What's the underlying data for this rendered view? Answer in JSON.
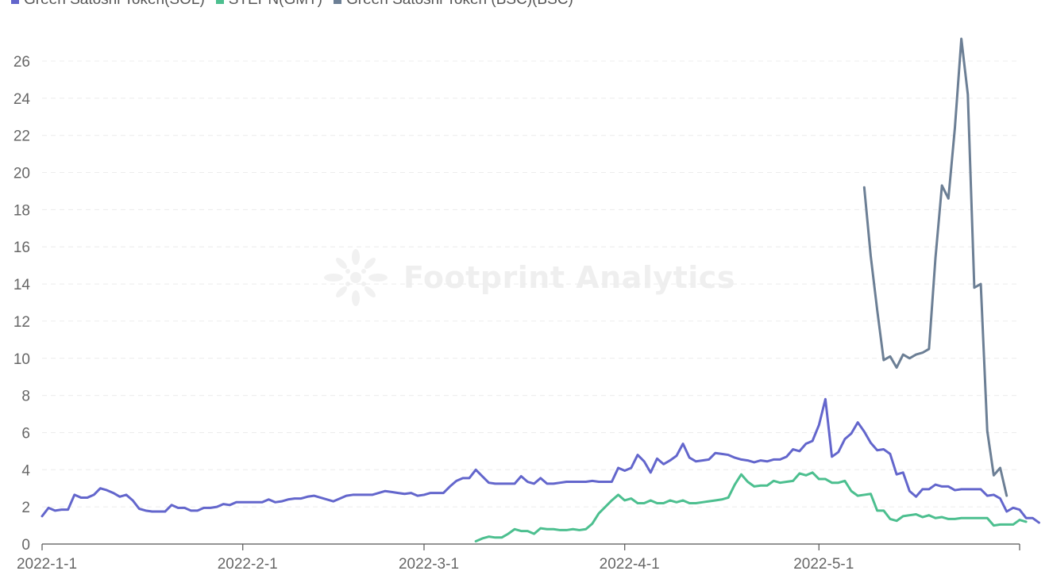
{
  "legend": [
    {
      "label": "Green Satoshi Token(SOL)",
      "color": "#6366cc"
    },
    {
      "label": "STEPN(GMT)",
      "color": "#4cbf8f"
    },
    {
      "label": "Green Satoshi Token (BSC)(BSC)",
      "color": "#6c7f95"
    }
  ],
  "watermark": {
    "text": "Footprint Analytics"
  },
  "chart_data": {
    "type": "line",
    "title": "",
    "xlabel": "",
    "ylabel": "",
    "x_start": "2022-01-01",
    "x_end": "2022-06-01",
    "x_ticks": [
      {
        "label": "2022-1-1",
        "day": 0
      },
      {
        "label": "2022-2-1",
        "day": 31
      },
      {
        "label": "2022-3-1",
        "day": 59
      },
      {
        "label": "2022-4-1",
        "day": 90
      },
      {
        "label": "2022-5-1",
        "day": 120
      }
    ],
    "ylim": [
      0,
      27
    ],
    "y_ticks": [
      0,
      2,
      4,
      6,
      8,
      10,
      12,
      14,
      16,
      18,
      20,
      22,
      24,
      26
    ],
    "grid": true,
    "series": [
      {
        "name": "Green Satoshi Token(SOL)",
        "color": "#6366cc",
        "start_date": "2022-01-01",
        "values": [
          1.5,
          1.95,
          1.8,
          1.85,
          1.85,
          2.65,
          2.5,
          2.5,
          2.65,
          3.0,
          2.9,
          2.75,
          2.55,
          2.65,
          2.35,
          1.9,
          1.8,
          1.75,
          1.75,
          1.75,
          2.1,
          1.95,
          1.95,
          1.8,
          1.8,
          1.95,
          1.95,
          2.0,
          2.15,
          2.1,
          2.25,
          2.25,
          2.25,
          2.25,
          2.25,
          2.4,
          2.25,
          2.3,
          2.4,
          2.45,
          2.45,
          2.55,
          2.6,
          2.5,
          2.4,
          2.3,
          2.45,
          2.6,
          2.65,
          2.65,
          2.65,
          2.65,
          2.75,
          2.85,
          2.8,
          2.75,
          2.7,
          2.75,
          2.6,
          2.65,
          2.75,
          2.75,
          2.75,
          3.1,
          3.4,
          3.55,
          3.55,
          4.0,
          3.65,
          3.3,
          3.25,
          3.25,
          3.25,
          3.25,
          3.65,
          3.35,
          3.25,
          3.55,
          3.25,
          3.25,
          3.3,
          3.35,
          3.35,
          3.35,
          3.35,
          3.4,
          3.35,
          3.35,
          3.35,
          4.1,
          3.95,
          4.1,
          4.8,
          4.45,
          3.85,
          4.6,
          4.3,
          4.5,
          4.75,
          5.4,
          4.65,
          4.45,
          4.5,
          4.55,
          4.9,
          4.85,
          4.8,
          4.65,
          4.55,
          4.5,
          4.4,
          4.5,
          4.45,
          4.55,
          4.55,
          4.7,
          5.1,
          5.0,
          5.4,
          5.55,
          6.4,
          7.8,
          4.7,
          4.95,
          5.65,
          5.95,
          6.55,
          6.05,
          5.45,
          5.05,
          5.1,
          4.85,
          3.75,
          3.85,
          2.85,
          2.55,
          2.95,
          2.95,
          3.2,
          3.1,
          3.1,
          2.9,
          2.95,
          2.95,
          2.95,
          2.95,
          2.6,
          2.65,
          2.45,
          1.75,
          1.95,
          1.85,
          1.4,
          1.4,
          1.15
        ]
      },
      {
        "name": "STEPN(GMT)",
        "color": "#4cbf8f",
        "start_date": "2022-03-09",
        "values": [
          0.15,
          0.3,
          0.4,
          0.35,
          0.35,
          0.55,
          0.8,
          0.7,
          0.7,
          0.55,
          0.85,
          0.8,
          0.8,
          0.75,
          0.75,
          0.8,
          0.75,
          0.8,
          1.1,
          1.65,
          2.0,
          2.35,
          2.65,
          2.35,
          2.45,
          2.2,
          2.2,
          2.35,
          2.2,
          2.2,
          2.35,
          2.25,
          2.35,
          2.2,
          2.2,
          2.25,
          2.3,
          2.35,
          2.4,
          2.5,
          3.2,
          3.75,
          3.35,
          3.1,
          3.15,
          3.15,
          3.4,
          3.3,
          3.35,
          3.4,
          3.8,
          3.7,
          3.85,
          3.5,
          3.5,
          3.3,
          3.3,
          3.4,
          2.85,
          2.6,
          2.65,
          2.7,
          1.8,
          1.8,
          1.35,
          1.25,
          1.5,
          1.55,
          1.6,
          1.45,
          1.55,
          1.4,
          1.45,
          1.35,
          1.35,
          1.4,
          1.4,
          1.4,
          1.4,
          1.4,
          1.0,
          1.05,
          1.05,
          1.05,
          1.3,
          1.2
        ]
      },
      {
        "name": "Green Satoshi Token (BSC)(BSC)",
        "color": "#6c7f95",
        "start_date": "2022-05-08",
        "values": [
          19.2,
          15.5,
          12.6,
          9.9,
          10.1,
          9.5,
          10.2,
          10.0,
          10.2,
          10.3,
          10.5,
          15.4,
          19.3,
          18.6,
          22.4,
          27.2,
          24.2,
          13.8,
          14.0,
          6.1,
          3.7,
          4.1,
          2.6
        ]
      }
    ]
  }
}
